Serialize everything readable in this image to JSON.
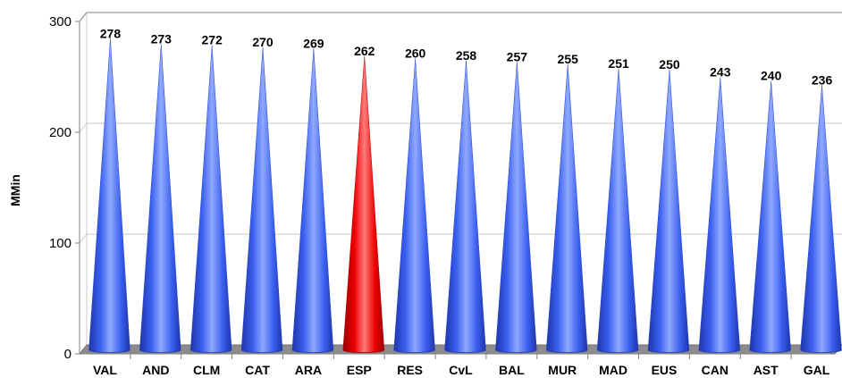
{
  "chart_data": {
    "type": "bar",
    "shape": "cone",
    "title": "",
    "xlabel": "",
    "ylabel": "MMin",
    "ylim": [
      0,
      300
    ],
    "yticks": [
      0,
      100,
      200,
      300
    ],
    "grid": true,
    "categories": [
      "VAL",
      "AND",
      "CLM",
      "CAT",
      "ARA",
      "ESP",
      "RES",
      "CvL",
      "BAL",
      "MUR",
      "MAD",
      "EUS",
      "CAN",
      "AST",
      "GAL"
    ],
    "values": [
      278,
      273,
      272,
      270,
      269,
      262,
      260,
      258,
      257,
      255,
      251,
      250,
      243,
      240,
      236
    ],
    "highlight": "ESP",
    "colors": {
      "default": "#3a5ff0",
      "default_light": "#8fa8ff",
      "default_dark": "#1d35a8",
      "highlight": "#ee0000",
      "highlight_light": "#ff7a7a",
      "highlight_dark": "#9a0000",
      "floor": "#8c8c8c",
      "gridline": "#c8c8c8",
      "axis": "#808080"
    }
  }
}
